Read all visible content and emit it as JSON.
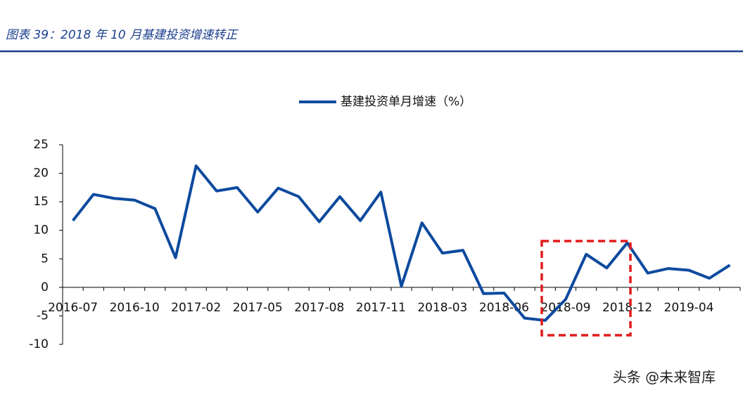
{
  "header": {
    "title": "图表 39：2018 年 10 月基建投资增速转正"
  },
  "watermark": "头条 @未来智库",
  "chart_data": {
    "type": "line",
    "categories": [
      "2016-07",
      null,
      null,
      "2016-10",
      null,
      null,
      "2017-02",
      null,
      null,
      "2017-05",
      null,
      null,
      "2017-08",
      null,
      null,
      "2017-11",
      null,
      null,
      "2018-03",
      null,
      null,
      "2018-06",
      null,
      null,
      "2018-09",
      null,
      null,
      "2018-12",
      null,
      null,
      "2019-04",
      null,
      null
    ],
    "series": [
      {
        "name": "基建投资单月增速（%）",
        "color": "#0d4a9e",
        "values": [
          11.7,
          16.3,
          15.6,
          15.3,
          13.8,
          5.2,
          21.3,
          16.9,
          17.5,
          13.2,
          17.4,
          15.9,
          11.5,
          15.9,
          11.7,
          16.7,
          0.2,
          11.3,
          6.0,
          6.5,
          -1.1,
          -1.0,
          -5.4,
          -5.8,
          -2.1,
          5.8,
          3.4,
          7.8,
          2.5,
          3.3,
          3.0,
          1.6,
          3.9
        ]
      }
    ],
    "ylim": [
      -10,
      25
    ],
    "yticks": [
      -10,
      -5,
      0,
      5,
      10,
      15,
      20,
      25
    ],
    "grid": false,
    "legend": "top"
  }
}
